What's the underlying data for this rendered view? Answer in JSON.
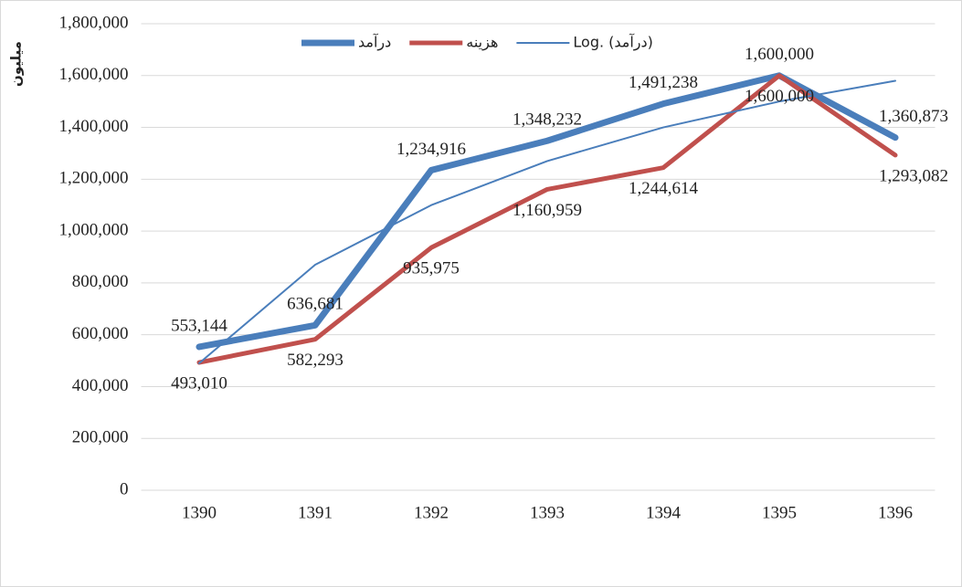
{
  "chart_data": {
    "type": "line",
    "y_label": "میلیون",
    "categories": [
      "1390",
      "1391",
      "1392",
      "1393",
      "1394",
      "1395",
      "1396"
    ],
    "series": [
      {
        "name": "درآمد",
        "color": "#4a7ebb",
        "values": [
          553144,
          636681,
          1234916,
          1348232,
          1491238,
          1600000,
          1360873
        ],
        "value_labels": [
          "553,144",
          "636,681",
          "1,234,916",
          "1,348,232",
          "1,491,238",
          "1,600,000",
          "1,360,873"
        ]
      },
      {
        "name": "هزینه",
        "color": "#c0504d",
        "values": [
          493010,
          582293,
          935975,
          1160959,
          1244614,
          1600000,
          1293082
        ],
        "value_labels": [
          "493,010",
          "582,293",
          "935,975",
          "1,160,959",
          "1,244,614",
          "1,600,000",
          "1,293,082"
        ]
      },
      {
        "name": "Log. (درآمد)",
        "color": "#4a7ebb",
        "values": [
          490000,
          870000,
          1100000,
          1270000,
          1400000,
          1500000,
          1580000
        ]
      }
    ],
    "ylim": [
      0,
      1800000
    ],
    "yticks": [
      0,
      {
        "value": 200000,
        "label": "200,000"
      },
      {
        "value": 400000,
        "label": "400,000"
      },
      {
        "value": 600000,
        "label": "600,000"
      },
      {
        "value": 800000,
        "label": "800,000"
      },
      {
        "value": 1000000,
        "label": "1,000,000"
      },
      {
        "value": 1200000,
        "label": "1,200,000"
      },
      {
        "value": 1400000,
        "label": "1,400,000"
      },
      {
        "value": 1600000,
        "label": "1,600,000"
      },
      {
        "value": 1800000,
        "label": "1,800,000"
      }
    ],
    "grid": true
  }
}
